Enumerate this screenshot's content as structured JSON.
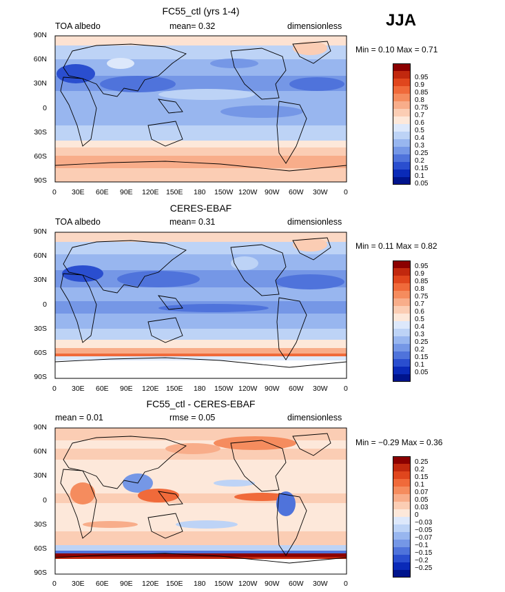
{
  "season": "JJA",
  "longitude_ticks": [
    "0",
    "30E",
    "60E",
    "90E",
    "120E",
    "150E",
    "180",
    "150W",
    "120W",
    "90W",
    "60W",
    "30W",
    "0"
  ],
  "latitude_ticks": [
    "90N",
    "60N",
    "30N",
    "0",
    "30S",
    "60S",
    "90S"
  ],
  "panels": [
    {
      "title": "FC55_ctl (yrs 1-4)",
      "left_label": "TOA albedo",
      "center_label": "mean=   0.32",
      "right_label": "dimensionless",
      "min_max": "Min =  0.10  Max =  0.71",
      "colorbar_labels": [
        "0.95",
        "0.9",
        "0.85",
        "0.8",
        "0.75",
        "0.7",
        "0.6",
        "0.5",
        "0.4",
        "0.3",
        "0.25",
        "0.2",
        "0.15",
        "0.1",
        "0.05"
      ],
      "colorbar_colors": [
        "#8b0000",
        "#c1280e",
        "#e0461d",
        "#f06a3a",
        "#f58c5e",
        "#f8ad8a",
        "#fbcdb4",
        "#fde8da",
        "#dde8fb",
        "#bdd3f6",
        "#98b6ef",
        "#7597e6",
        "#4f73db",
        "#2a4ecf",
        "#0a2ab8",
        "#00148c"
      ]
    },
    {
      "title": "CERES-EBAF",
      "left_label": "TOA albedo",
      "center_label": "mean=   0.31",
      "right_label": "dimensionless",
      "min_max": "Min =  0.11  Max =  0.82",
      "colorbar_labels": [
        "0.95",
        "0.9",
        "0.85",
        "0.8",
        "0.75",
        "0.7",
        "0.6",
        "0.5",
        "0.4",
        "0.3",
        "0.25",
        "0.2",
        "0.15",
        "0.1",
        "0.05"
      ],
      "colorbar_colors": [
        "#8b0000",
        "#c1280e",
        "#e0461d",
        "#f06a3a",
        "#f58c5e",
        "#f8ad8a",
        "#fbcdb4",
        "#fde8da",
        "#dde8fb",
        "#bdd3f6",
        "#98b6ef",
        "#7597e6",
        "#4f73db",
        "#2a4ecf",
        "#0a2ab8",
        "#00148c"
      ]
    },
    {
      "title": "FC55_ctl - CERES-EBAF",
      "left_label": "mean =   0.01",
      "center_label": "rmse =   0.05",
      "right_label": "dimensionless",
      "min_max": "Min = −0.29  Max =  0.36",
      "colorbar_labels": [
        "0.25",
        "0.2",
        "0.15",
        "0.1",
        "0.07",
        "0.05",
        "0.03",
        "0",
        "−0.03",
        "−0.05",
        "−0.07",
        "−0.1",
        "−0.15",
        "−0.2",
        "−0.25"
      ],
      "colorbar_colors": [
        "#8b0000",
        "#c1280e",
        "#e0461d",
        "#f06a3a",
        "#f58c5e",
        "#f8ad8a",
        "#fbcdb4",
        "#fde8da",
        "#dde8fb",
        "#bdd3f6",
        "#98b6ef",
        "#7597e6",
        "#4f73db",
        "#2a4ecf",
        "#0a2ab8",
        "#00148c"
      ]
    }
  ]
}
